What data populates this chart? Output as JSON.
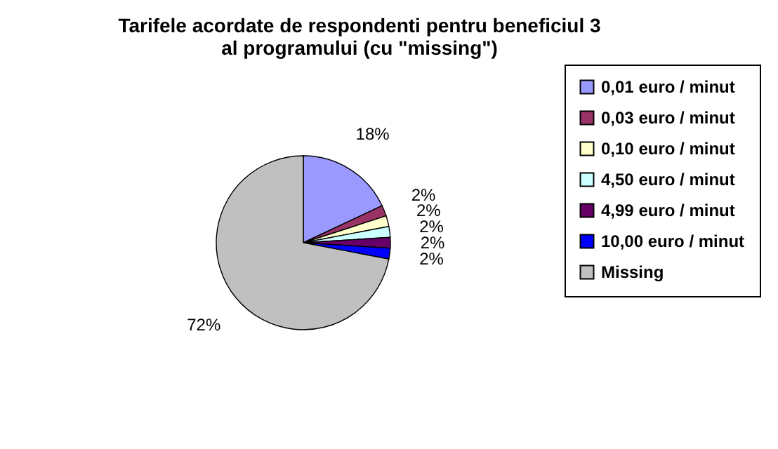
{
  "chart_data": {
    "type": "pie",
    "title": [
      "Tarifele acordate de respondenti pentru beneficiul 3",
      "al programului (cu \"missing\")"
    ],
    "categories": [
      "0,01 euro / minut",
      "0,03 euro / minut",
      "0,10 euro / minut",
      "4,50 euro / minut",
      "4,99 euro / minut",
      "10,00 euro / minut",
      "Missing"
    ],
    "values": [
      18,
      2,
      2,
      2,
      2,
      2,
      72
    ],
    "colors": [
      "#9999ff",
      "#993366",
      "#ffffcc",
      "#ccffff",
      "#660066",
      "#0000ff",
      "#c0c0c0"
    ],
    "value_labels": [
      "18%",
      "2%",
      "2%",
      "2%",
      "2%",
      "2%",
      "72%"
    ],
    "legend": "right"
  }
}
